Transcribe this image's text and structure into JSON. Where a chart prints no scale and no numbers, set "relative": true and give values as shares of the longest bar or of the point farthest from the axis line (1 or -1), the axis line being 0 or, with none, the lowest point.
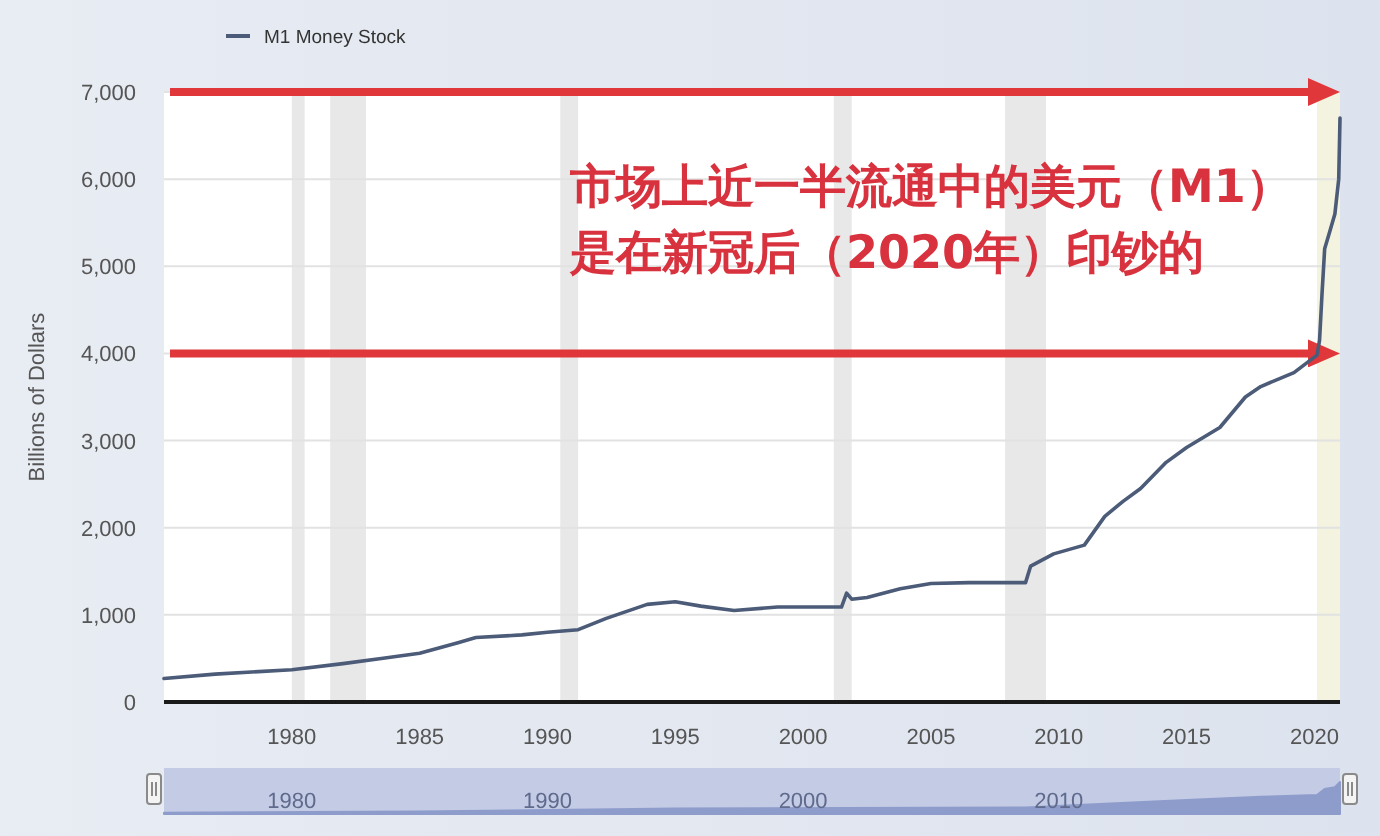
{
  "chart_data": [
    {
      "type": "line",
      "ylabel": "Billions of Dollars",
      "legend": "top left",
      "grid": "y",
      "x": [
        1975.0,
        1977.0,
        1980.0,
        1982.0,
        1983.5,
        1985.0,
        1986.5,
        1987.2,
        1989.0,
        1990.0,
        1991.2,
        1992.3,
        1993.9,
        1995.0,
        1996.0,
        1997.3,
        1999.0,
        2000.2,
        2001.5,
        2001.7,
        2001.9,
        2002.5,
        2003.8,
        2005.0,
        2006.5,
        2008.7,
        2008.9,
        2009.8,
        2011.0,
        2011.8,
        2012.5,
        2013.2,
        2014.2,
        2015.0,
        2016.3,
        2017.3,
        2017.9,
        2019.2,
        2020.1,
        2020.2,
        2020.3,
        2020.4,
        2020.6,
        2020.8,
        2020.95,
        2021.0
      ],
      "series": [
        {
          "name": "M1 Money Stock",
          "color": "#4b5b78",
          "values": [
            270,
            320,
            370,
            440,
            500,
            560,
            680,
            740,
            770,
            800,
            830,
            960,
            1120,
            1150,
            1100,
            1050,
            1090,
            1090,
            1090,
            1250,
            1180,
            1200,
            1300,
            1360,
            1370,
            1370,
            1560,
            1700,
            1800,
            2130,
            2300,
            2450,
            2750,
            2920,
            3150,
            3500,
            3620,
            3780,
            3980,
            4150,
            4700,
            5200,
            5400,
            5600,
            6000,
            6700
          ]
        }
      ],
      "xlim": [
        1975,
        2021
      ],
      "xticks": [
        1980,
        1985,
        1990,
        1995,
        2000,
        2005,
        2010,
        2015,
        2020
      ],
      "ylim": [
        0,
        7000
      ],
      "yticks": [
        0,
        {
          "value": 1000,
          "label": "1,000"
        },
        {
          "value": 2000,
          "label": "2,000"
        },
        {
          "value": 3000,
          "label": "3,000"
        },
        {
          "value": 4000,
          "label": "4,000"
        },
        {
          "value": 5000,
          "label": "5,000"
        },
        {
          "value": 6000,
          "label": "6,000"
        },
        {
          "value": 7000,
          "label": "7,000"
        }
      ],
      "bands": [
        {
          "axis": "x",
          "from": 1980.0,
          "to": 1980.5,
          "color": "#e8e8e8"
        },
        {
          "axis": "x",
          "from": 1981.5,
          "to": 1982.9,
          "color": "#e8e8e8"
        },
        {
          "axis": "x",
          "from": 1990.5,
          "to": 1991.2,
          "color": "#e8e8e8"
        },
        {
          "axis": "x",
          "from": 2001.2,
          "to": 2001.9,
          "color": "#e8e8e8"
        },
        {
          "axis": "x",
          "from": 2007.9,
          "to": 2009.5,
          "color": "#e8e8e8"
        },
        {
          "axis": "x",
          "from": 2020.1,
          "to": 2021.0,
          "color": "#f3f3df"
        }
      ],
      "ref_lines": [
        {
          "axis": "y",
          "value": 7000,
          "color": "#e0383a"
        },
        {
          "axis": "y",
          "value": 4000,
          "color": "#e0383a"
        }
      ],
      "annotations": [
        "市场上近一半流通中的美元（M1）",
        "是在新冠后（2020年）印钞的"
      ]
    },
    {
      "type": "area",
      "relative": true,
      "color": "#8e9ccb",
      "tick_labels": "x",
      "x": [
        1975.0,
        1985.0,
        1995.0,
        2001.7,
        2008.7,
        2011.8,
        2015.0,
        2017.9,
        2020.1,
        2020.4,
        2020.8,
        2021.0
      ],
      "values": [
        0.04,
        0.08,
        0.17,
        0.19,
        0.2,
        0.32,
        0.44,
        0.54,
        0.59,
        0.78,
        0.84,
        1
      ],
      "xlim": [
        1975,
        2021
      ],
      "xticks": [
        1980,
        1990,
        2000,
        2010
      ]
    }
  ]
}
